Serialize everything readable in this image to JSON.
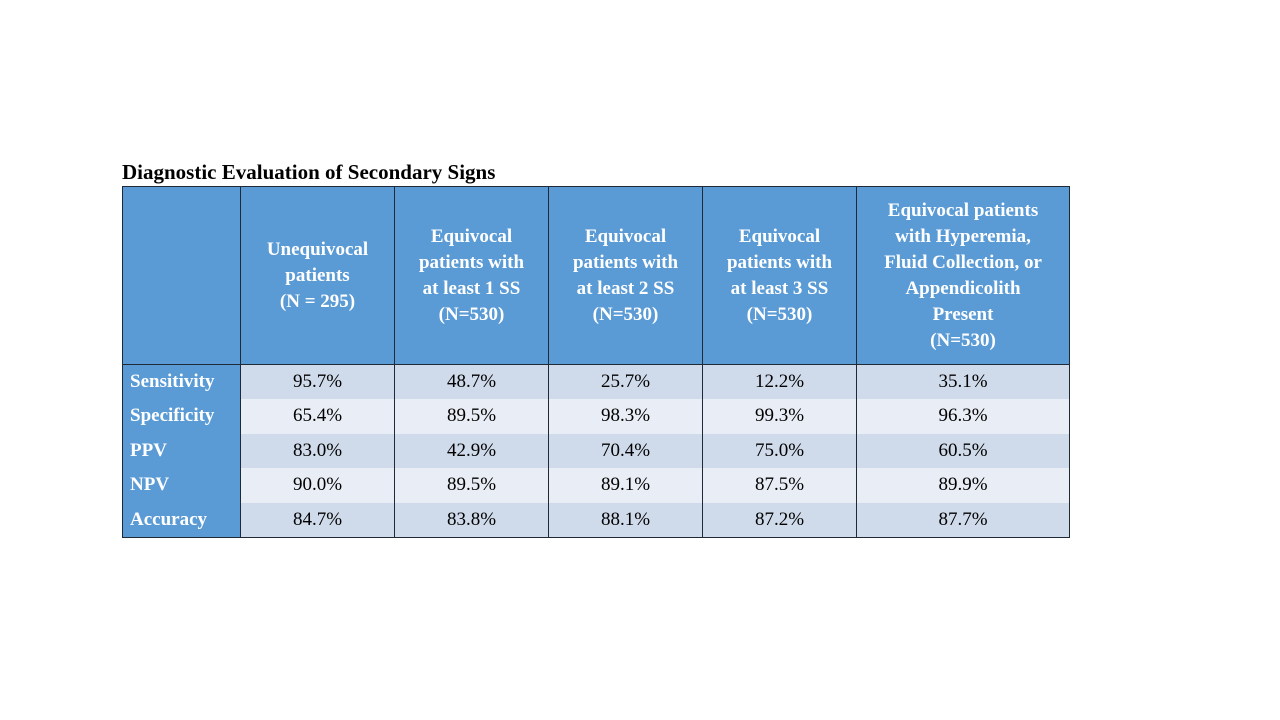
{
  "title": "Diagnostic Evaluation of Secondary Signs",
  "table": {
    "headers": [
      {
        "lines": []
      },
      {
        "lines": [
          "Unequivocal",
          "patients",
          "(N = 295)"
        ]
      },
      {
        "lines": [
          "Equivocal",
          "patients with",
          "at least 1 SS",
          "(N=530)"
        ]
      },
      {
        "lines": [
          "Equivocal",
          "patients with",
          "at least 2 SS",
          "(N=530)"
        ]
      },
      {
        "lines": [
          "Equivocal",
          "patients with",
          "at least 3 SS",
          "(N=530)"
        ]
      },
      {
        "lines": [
          "Equivocal patients",
          "with Hyperemia,",
          "Fluid Collection, or",
          "Appendicolith",
          "Present",
          "(N=530)"
        ]
      }
    ],
    "rows": [
      {
        "label": "Sensitivity",
        "values": [
          "95.7%",
          "48.7%",
          "25.7%",
          "12.2%",
          "35.1%"
        ]
      },
      {
        "label": "Specificity",
        "values": [
          "65.4%",
          "89.5%",
          "98.3%",
          "99.3%",
          "96.3%"
        ]
      },
      {
        "label": "PPV",
        "values": [
          "83.0%",
          "42.9%",
          "70.4%",
          "75.0%",
          "60.5%"
        ]
      },
      {
        "label": "NPV",
        "values": [
          "90.0%",
          "89.5%",
          "89.1%",
          "87.5%",
          "89.9%"
        ]
      },
      {
        "label": "Accuracy",
        "values": [
          "84.7%",
          "83.8%",
          "88.1%",
          "87.2%",
          "87.7%"
        ]
      }
    ]
  },
  "colors": {
    "header_bg": "#5b9bd5",
    "row_odd_bg": "#cfdaea",
    "row_even_bg": "#e9edf5"
  }
}
